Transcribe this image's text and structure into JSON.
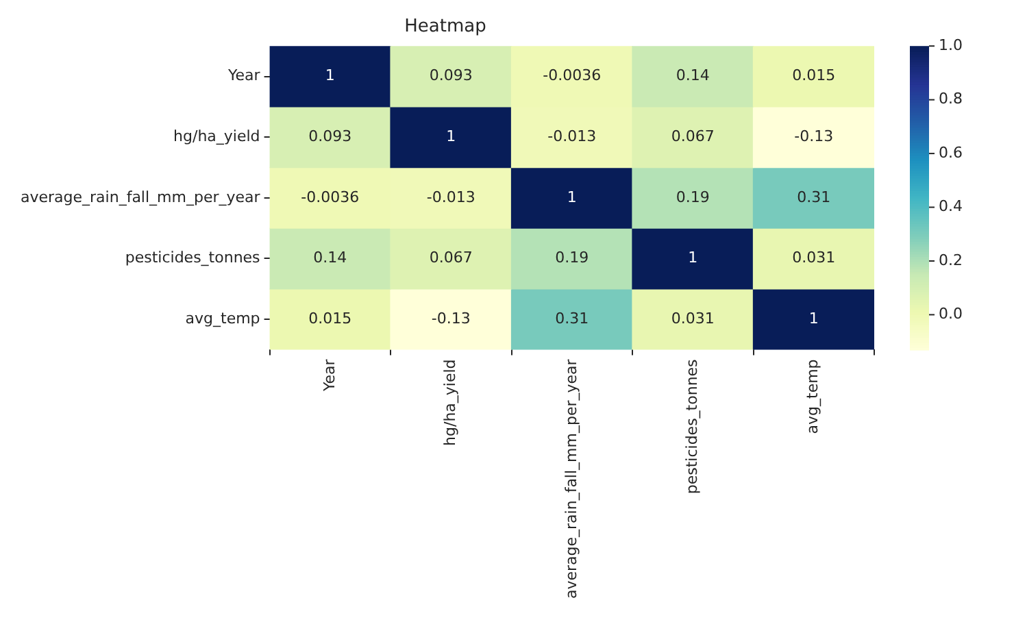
{
  "chart_data": {
    "type": "heatmap",
    "title": "Heatmap",
    "categories": [
      "Year",
      "hg/ha_yield",
      "average_rain_fall_mm_per_year",
      "pesticides_tonnes",
      "avg_temp"
    ],
    "y_categories": [
      "Year",
      "hg/ha_yield",
      "average_rain_fall_mm_per_year",
      "pesticides_tonnes",
      "avg_temp"
    ],
    "cells": [
      [
        1,
        0.093,
        -0.0036,
        0.14,
        0.015
      ],
      [
        0.093,
        1,
        -0.013,
        0.067,
        -0.13
      ],
      [
        -0.0036,
        -0.013,
        1,
        0.19,
        0.31
      ],
      [
        0.14,
        0.067,
        0.19,
        1,
        0.031
      ],
      [
        0.015,
        -0.13,
        0.31,
        0.031,
        1
      ]
    ],
    "clim": [
      -0.13,
      1
    ],
    "cticks": [
      {
        "value": 0,
        "label": "0.0"
      },
      {
        "value": 0.2,
        "label": "0.2"
      },
      {
        "value": 0.4,
        "label": "0.4"
      },
      {
        "value": 0.6,
        "label": "0.6"
      },
      {
        "value": 0.8,
        "label": "0.8"
      },
      {
        "value": 1,
        "label": "1.0"
      }
    ],
    "data_labels": true
  }
}
